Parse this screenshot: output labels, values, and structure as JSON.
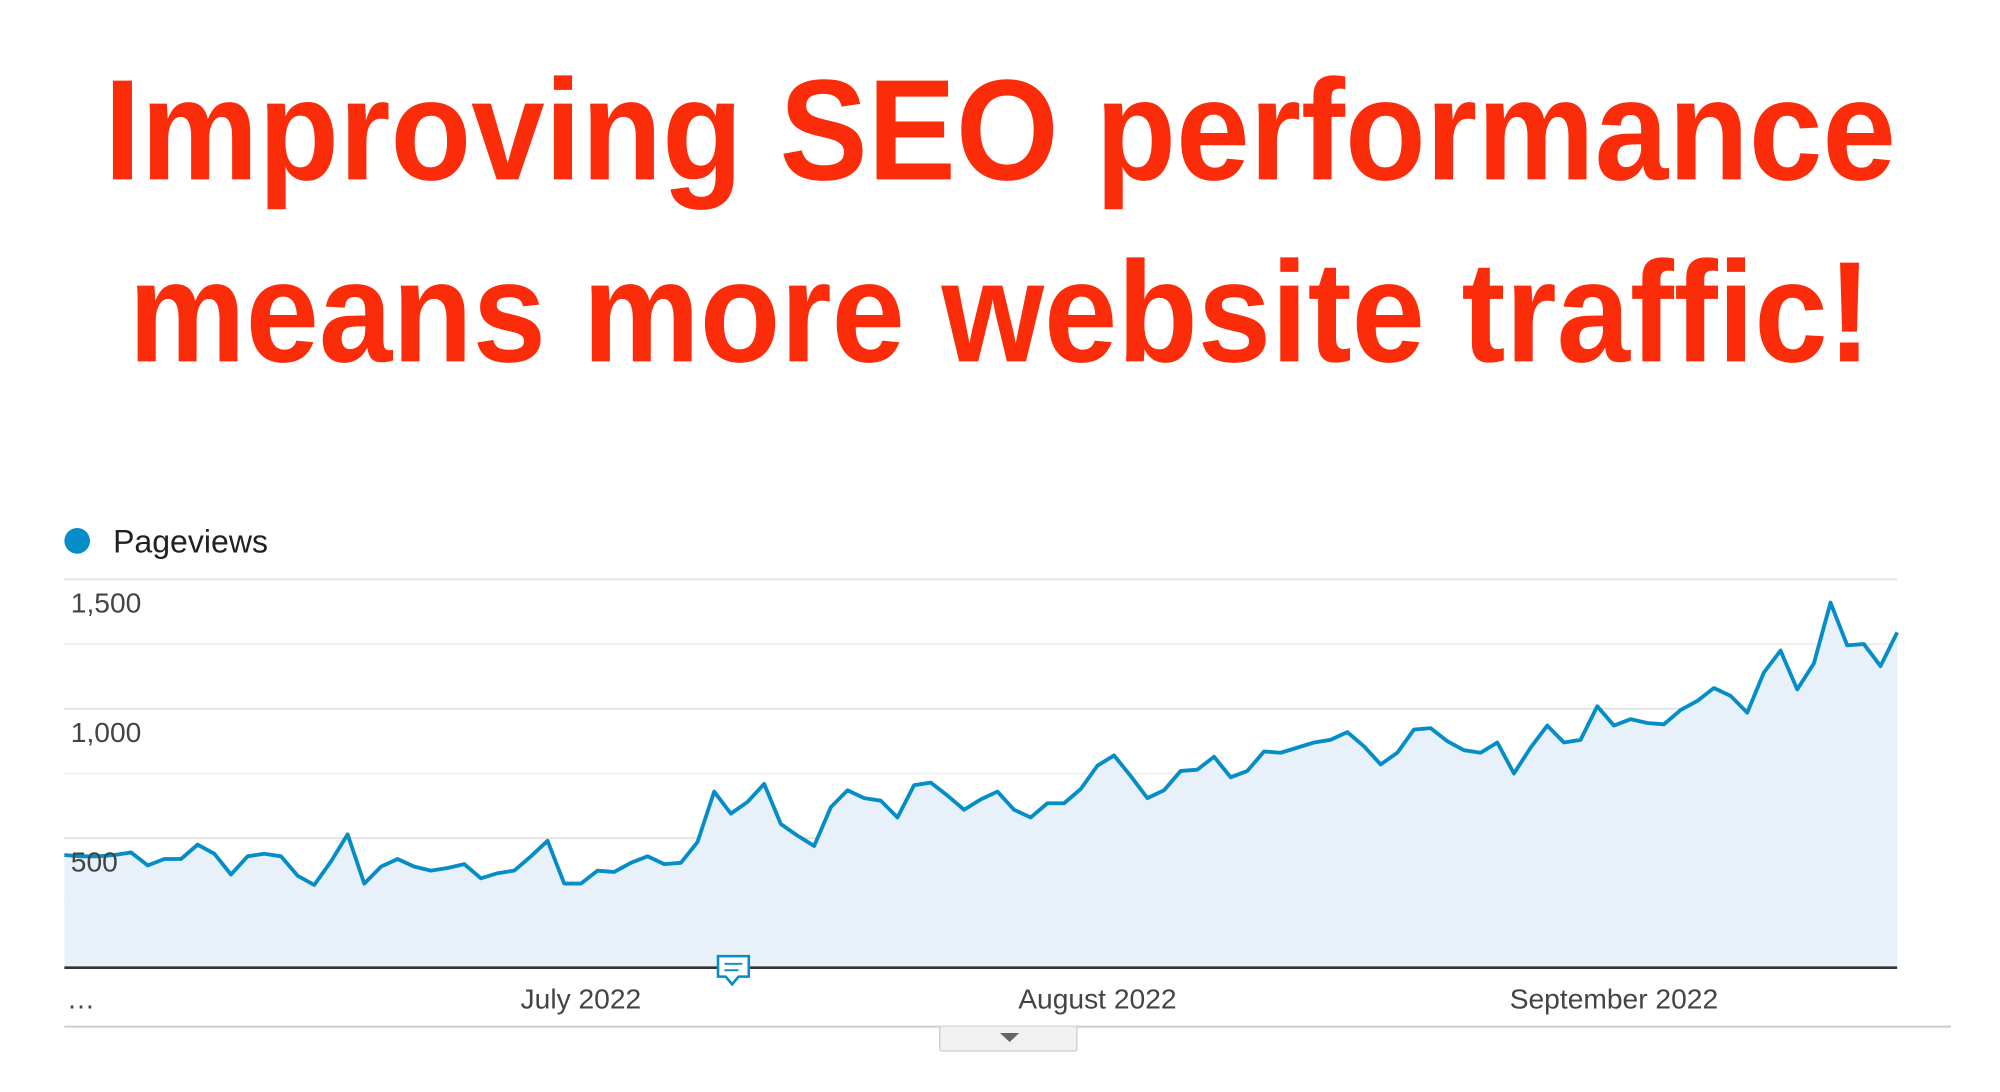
{
  "chart_data": {
    "type": "area-line",
    "title": [
      "Improving SEO performance",
      "means more website traffic!"
    ],
    "categories": [
      "…",
      null,
      null,
      null,
      null,
      null,
      null,
      null,
      null,
      null,
      null,
      null,
      null,
      null,
      null,
      null,
      null,
      null,
      null,
      null,
      null,
      null,
      null,
      null,
      null,
      null,
      null,
      null,
      null,
      null,
      null,
      "July 2022",
      null,
      null,
      null,
      null,
      null,
      null,
      null,
      null,
      null,
      null,
      null,
      null,
      null,
      null,
      null,
      null,
      null,
      null,
      null,
      null,
      null,
      null,
      null,
      null,
      null,
      null,
      null,
      null,
      null,
      null,
      "August 2022",
      null,
      null,
      null,
      null,
      null,
      null,
      null,
      null,
      null,
      null,
      null,
      null,
      null,
      null,
      null,
      null,
      null,
      null,
      null,
      null,
      null,
      null,
      null,
      null,
      null,
      null,
      null,
      null,
      null,
      null,
      "September 2022",
      null,
      null,
      null,
      null,
      null,
      null,
      null,
      null,
      null,
      null,
      null,
      null,
      null,
      null,
      null,
      null,
      null
    ],
    "series": [
      {
        "name": "Pageviews",
        "color": "#058dc7",
        "fill": "#e8f1f9",
        "values": [
          435,
          430,
          430,
          435,
          445,
          395,
          420,
          420,
          475,
          440,
          360,
          430,
          440,
          430,
          355,
          320,
          410,
          515,
          325,
          390,
          420,
          390,
          375,
          385,
          400,
          345,
          365,
          375,
          430,
          490,
          325,
          325,
          375,
          370,
          405,
          430,
          400,
          405,
          485,
          680,
          595,
          640,
          710,
          555,
          510,
          470,
          620,
          685,
          655,
          645,
          580,
          705,
          715,
          665,
          610,
          650,
          680,
          610,
          580,
          635,
          635,
          690,
          780,
          820,
          740,
          655,
          685,
          760,
          765,
          815,
          735,
          760,
          835,
          830,
          850,
          870,
          880,
          910,
          855,
          785,
          830,
          920,
          925,
          875,
          840,
          830,
          870,
          750,
          850,
          935,
          870,
          880,
          1010,
          935,
          960,
          945,
          940,
          995,
          1030,
          1080,
          1050,
          985,
          1140,
          1225,
          1075,
          1175,
          1410,
          1245,
          1250,
          1165,
          1295
        ]
      }
    ],
    "ylim": [
      0,
      1500
    ],
    "yticks": [
      {
        "value": 500,
        "label": "500"
      },
      {
        "value": 1000,
        "label": "1,000"
      },
      {
        "value": 1500,
        "label": "1,500"
      }
    ],
    "minor_gridlines": [
      250,
      750,
      1250
    ],
    "grid": true
  }
}
